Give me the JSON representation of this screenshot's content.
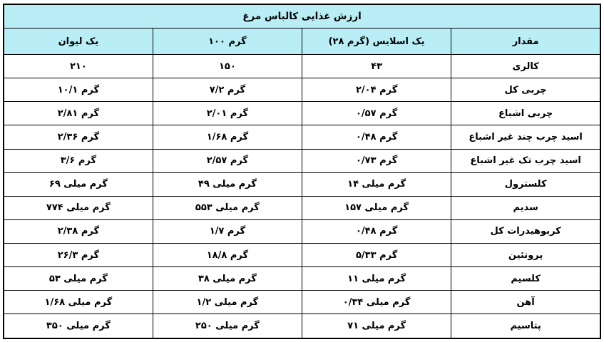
{
  "table": {
    "title": "ارزش غذایی کالباس مرغ",
    "columns": [
      {
        "id": "cup",
        "label": "یک لیوان"
      },
      {
        "id": "g100",
        "label": "۱۰۰ گرم"
      },
      {
        "id": "slice",
        "label": "یک اسلایس (۲۸ گرم)"
      },
      {
        "id": "amount",
        "label": "مقدار"
      }
    ],
    "rows": [
      {
        "label": "کالری",
        "cup": "۲۱۰",
        "g100": "۱۵۰",
        "slice": "۴۳"
      },
      {
        "label": "چربی کل",
        "cup": "۱۰/۱ گرم",
        "g100": "۷/۲ گرم",
        "slice": "۲/۰۴ گرم"
      },
      {
        "label": "چربی اشباع",
        "cup": "۲/۸۱ گرم",
        "g100": "۲/۰۱ گرم",
        "slice": "۰/۵۷ گرم"
      },
      {
        "label": "اسید چرب چند غیر اشباع",
        "cup": "۲/۳۶ گرم",
        "g100": "۱/۶۸ گرم",
        "slice": "۰/۴۸ گرم"
      },
      {
        "label": "اسید چرب تک غیر اشباع",
        "cup": "۳/۶ گرم",
        "g100": "۲/۵۷ گرم",
        "slice": "۰/۷۳ گرم"
      },
      {
        "label": "کلسترول",
        "cup": "۶۹ میلی گرم",
        "g100": "۴۹ میلی گرم",
        "slice": "۱۴ میلی گرم"
      },
      {
        "label": "سدیم",
        "cup": "۷۷۴ میلی گرم",
        "g100": "۵۵۳ میلی گرم",
        "slice": "۱۵۷ میلی گرم"
      },
      {
        "label": "کربوهیدرات کل",
        "cup": "۲/۳۸ گرم",
        "g100": "۱/۷ گرم",
        "slice": "۰/۴۸ گرم"
      },
      {
        "label": "پروتئین",
        "cup": "۲۶/۳ گرم",
        "g100": "۱۸/۸ گرم",
        "slice": "۵/۳۳ گرم"
      },
      {
        "label": "کلسیم",
        "cup": "۵۳ میلی گرم",
        "g100": "۳۸ میلی گرم",
        "slice": "۱۱ میلی گرم"
      },
      {
        "label": "آهن",
        "cup": "۱/۶۸ میلی گرم",
        "g100": "۱/۲ میلی گرم",
        "slice": "۰/۳۴ میلی گرم"
      },
      {
        "label": "پتاسیم",
        "cup": "۳۵۰ میلی گرم",
        "g100": "۲۵۰ میلی گرم",
        "slice": "۷۱ میلی گرم"
      }
    ]
  },
  "colors": {
    "header_bg": "#b9eef7",
    "border": "#000000",
    "cell_bg": "#ffffff",
    "text": "#000000"
  }
}
